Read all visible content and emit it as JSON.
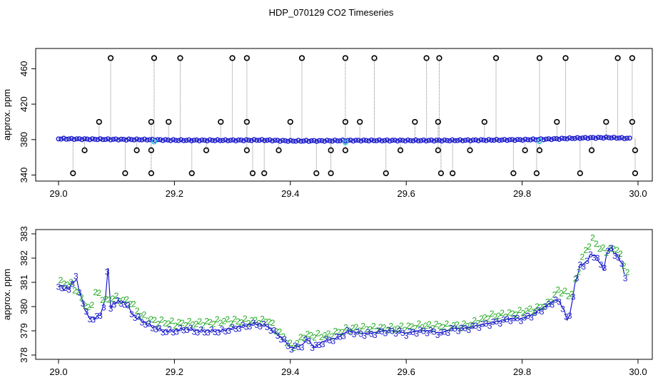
{
  "title": "HDP_070129  CO2 Timeseries",
  "chart_data": [
    {
      "type": "scatter",
      "ylabel": "approx. ppm",
      "xlabel": "",
      "xlim": [
        29.0,
        30.0
      ],
      "ylim": [
        338,
        478
      ],
      "xticks": [
        "29.0",
        "29.2",
        "29.4",
        "29.6",
        "29.8",
        "30.0"
      ],
      "yticks": [
        "340",
        "380",
        "420",
        "460"
      ],
      "colors": {
        "raw_points": "#000000",
        "raw_line": "#888888",
        "main": "#1a1acc",
        "highlight": "#2ec4d8"
      },
      "series": [
        {
          "values_x": [
            29.0,
            29.05,
            29.1,
            29.15,
            29.2,
            29.25,
            29.3,
            29.35,
            29.4,
            29.45,
            29.5,
            29.55,
            29.6,
            29.65,
            29.7,
            29.75,
            29.8,
            29.85,
            29.9,
            29.95,
            29.99
          ],
          "values_y": [
            381,
            380.5,
            380.2,
            380,
            379.3,
            379.2,
            379.2,
            379.5,
            378.5,
            378.6,
            379,
            379,
            379,
            379,
            379.2,
            379.5,
            379.8,
            380.6,
            381.8,
            382.3,
            381.2
          ]
        },
        {
          "values_x": [
            29.09,
            29.165,
            29.21,
            29.3,
            29.325,
            29.42,
            29.495,
            29.545,
            29.635,
            29.657,
            29.755,
            29.83,
            29.875,
            29.965,
            29.99
          ],
          "values_y": [
            472,
            472,
            472,
            472,
            472,
            472,
            472,
            472,
            472,
            472,
            472,
            472,
            472,
            472,
            472
          ]
        },
        {
          "values_x": [
            29.025,
            29.115,
            29.16,
            29.23,
            29.335,
            29.355,
            29.445,
            29.47,
            29.565,
            29.66,
            29.68,
            29.785,
            29.825,
            29.9,
            29.995
          ],
          "values_y": [
            342,
            342,
            342,
            342,
            342,
            342,
            342,
            342,
            342,
            342,
            342,
            342,
            342,
            342,
            342
          ]
        },
        {
          "values_x": [
            29.07,
            29.16,
            29.19,
            29.28,
            29.325,
            29.4,
            29.495,
            29.52,
            29.615,
            29.655,
            29.735,
            29.86,
            29.945,
            29.99
          ],
          "values_y": [
            400,
            400,
            400,
            400,
            400,
            400,
            400,
            400,
            400,
            400,
            400,
            400,
            400,
            400
          ]
        },
        {
          "values_x": [
            29.045,
            29.135,
            29.16,
            29.255,
            29.325,
            29.38,
            29.47,
            29.495,
            29.59,
            29.655,
            29.71,
            29.805,
            29.83,
            29.92,
            29.995
          ],
          "values_y": [
            368,
            368,
            368,
            368,
            368,
            368,
            368,
            368,
            368,
            368,
            368,
            368,
            368,
            368,
            368
          ]
        }
      ]
    },
    {
      "type": "scatter",
      "ylabel": "approx. ppm",
      "xlabel": "",
      "xlim": [
        29.0,
        30.0
      ],
      "ylim": [
        378,
        383
      ],
      "xticks": [
        "29.0",
        "29.2",
        "29.4",
        "29.6",
        "29.8",
        "30.0"
      ],
      "yticks": [
        "378",
        "379",
        "380",
        "381",
        "382",
        "383"
      ],
      "colors": {
        "series_3": "#1a1acc",
        "series_2": "#22aa22"
      },
      "series": [
        {
          "name": "3",
          "values_x": [
            29.0,
            29.01,
            29.02,
            29.03,
            29.04,
            29.05,
            29.06,
            29.07,
            29.08,
            29.085,
            29.09,
            29.1,
            29.11,
            29.12,
            29.13,
            29.14,
            29.15,
            29.16,
            29.18,
            29.2,
            29.22,
            29.24,
            29.26,
            29.28,
            29.3,
            29.32,
            29.34,
            29.36,
            29.38,
            29.39,
            29.4,
            29.42,
            29.43,
            29.44,
            29.46,
            29.48,
            29.5,
            29.52,
            29.54,
            29.56,
            29.58,
            29.6,
            29.62,
            29.64,
            29.66,
            29.68,
            29.7,
            29.72,
            29.74,
            29.76,
            29.78,
            29.8,
            29.82,
            29.84,
            29.86,
            29.87,
            29.88,
            29.89,
            29.9,
            29.91,
            29.92,
            29.93,
            29.94,
            29.95,
            29.96,
            29.97,
            29.98
          ],
          "values_y": [
            380.9,
            380.7,
            380.8,
            381.2,
            380.3,
            379.6,
            379.5,
            379.6,
            380.1,
            381.7,
            380.0,
            380.2,
            380.2,
            380.0,
            379.6,
            379.5,
            379.3,
            379.2,
            379.0,
            379.0,
            379.1,
            379.0,
            379.0,
            379.0,
            379.1,
            379.2,
            379.3,
            379.2,
            378.8,
            378.6,
            378.3,
            378.4,
            378.7,
            378.3,
            378.6,
            378.7,
            379.0,
            378.9,
            378.9,
            379.0,
            379.0,
            378.9,
            379.0,
            379.0,
            378.9,
            379.1,
            379.1,
            379.2,
            379.3,
            379.4,
            379.5,
            379.5,
            379.7,
            380.0,
            380.3,
            380.0,
            379.3,
            380.8,
            381.7,
            381.8,
            382.2,
            382.0,
            381.5,
            382.5,
            382.2,
            381.9,
            381.1
          ]
        },
        {
          "name": "2",
          "values_x": [
            29.0,
            29.02,
            29.04,
            29.05,
            29.06,
            29.08,
            29.09,
            29.1,
            29.12,
            29.14,
            29.16,
            29.2,
            29.24,
            29.28,
            29.32,
            29.36,
            29.4,
            29.42,
            29.44,
            29.46,
            29.5,
            29.54,
            29.58,
            29.62,
            29.66,
            29.7,
            29.74,
            29.78,
            29.82,
            29.84,
            29.86,
            29.88,
            29.9,
            29.91,
            29.92,
            29.93,
            29.94,
            29.96,
            29.98
          ],
          "values_y": [
            381.0,
            380.9,
            380.2,
            379.8,
            380.6,
            380.2,
            380.4,
            380.3,
            380.2,
            379.6,
            379.4,
            379.3,
            379.3,
            379.4,
            379.4,
            379.4,
            378.3,
            378.8,
            378.8,
            378.8,
            379.1,
            379.1,
            379.1,
            379.2,
            379.2,
            379.2,
            379.6,
            379.7,
            379.9,
            380.1,
            380.7,
            380.4,
            382.0,
            382.5,
            382.8,
            382.4,
            382.3,
            382.4,
            381.3
          ]
        }
      ]
    }
  ]
}
